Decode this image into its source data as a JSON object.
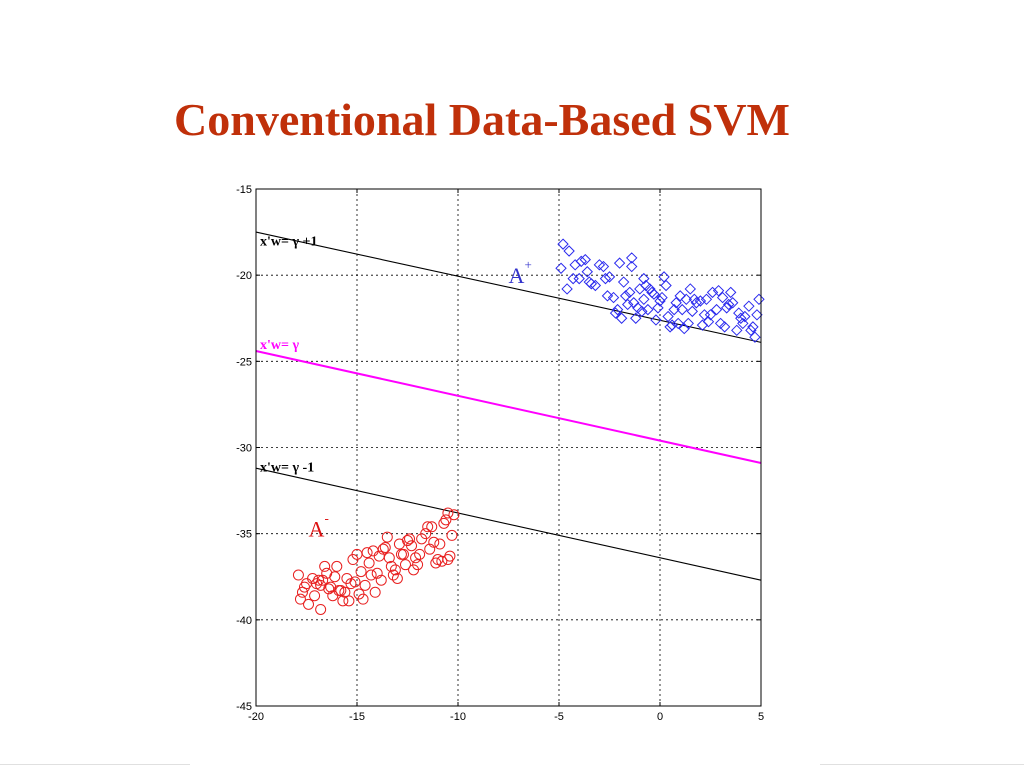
{
  "slide": {
    "title": "Conventional Data-Based SVM"
  },
  "chart_data": {
    "type": "scatter",
    "title": "",
    "xlabel": "",
    "ylabel": "",
    "xlim": [
      -20,
      5
    ],
    "ylim": [
      -45,
      -15
    ],
    "xticks": [
      -20,
      -15,
      -10,
      -5,
      0,
      5
    ],
    "yticks": [
      -45,
      -40,
      -35,
      -30,
      -25,
      -20,
      -15
    ],
    "xtick_labels": [
      "-20",
      "-15",
      "-10",
      "-5",
      "0",
      "5"
    ],
    "ytick_labels": [
      "-45",
      "-40",
      "-35",
      "-30",
      "-25",
      "-20",
      "-15"
    ],
    "grid": "dotted",
    "lines": [
      {
        "label": "x'w= γ +1",
        "color": "#000000",
        "x": [
          -20,
          5
        ],
        "y": [
          -17.5,
          -23.9
        ]
      },
      {
        "label": "x'w= γ",
        "color": "#ff00ff",
        "x": [
          -20,
          5
        ],
        "y": [
          -24.4,
          -30.9
        ]
      },
      {
        "label": "x'w= γ -1",
        "color": "#000000",
        "x": [
          -20,
          5
        ],
        "y": [
          -31.2,
          -37.7
        ]
      }
    ],
    "line_labels": [
      {
        "text": "x'w= γ +1",
        "color": "#000000",
        "at": [
          -19.9,
          -18.0
        ]
      },
      {
        "text": "x'w= γ",
        "color": "#ff00ff",
        "at": [
          -19.9,
          -24.0
        ]
      },
      {
        "text": "x'w= γ -1",
        "color": "#000000",
        "at": [
          -19.9,
          -31.1
        ]
      }
    ],
    "class_labels": [
      {
        "base": "A",
        "sup": "+",
        "color": "#3333cc",
        "at": [
          -7.5,
          -20.0
        ]
      },
      {
        "base": "A",
        "sup": "-",
        "color": "#dd1111",
        "at": [
          -17.4,
          -34.7
        ]
      }
    ],
    "series": [
      {
        "name": "A+",
        "marker": "diamond",
        "color": "#2a2aee",
        "x": [
          -4.8,
          -4.5,
          -4.2,
          -4.9,
          -4.0,
          -3.6,
          -3.2,
          -4.6,
          -3.9,
          -2.8,
          -2.5,
          -3.4,
          -2.0,
          -1.8,
          -1.4,
          -1.0,
          -2.3,
          -1.6,
          -0.8,
          -0.4,
          -1.2,
          0.0,
          0.3,
          0.7,
          -0.2,
          1.0,
          1.4,
          0.5,
          1.8,
          2.2,
          2.6,
          3.0,
          3.4,
          3.8,
          4.2,
          4.6,
          4.9,
          -2.1,
          -1.7,
          -1.3,
          -0.9,
          -0.5,
          -0.1,
          0.4,
          0.8,
          1.2,
          1.6,
          2.0,
          2.4,
          2.8,
          3.2,
          3.6,
          4.0,
          4.4,
          -2.7,
          -3.0,
          -1.5,
          -0.7,
          0.1,
          0.9,
          1.7,
          2.5,
          3.3,
          4.1,
          -3.5,
          -2.6,
          -1.9,
          -1.1,
          -0.3,
          0.6,
          1.5,
          2.3,
          3.1,
          3.9,
          4.7,
          -4.3,
          -3.7,
          -0.6,
          1.1,
          2.1,
          -1.4,
          0.2,
          2.9,
          4.5,
          -2.2,
          -0.8,
          1.3,
          3.5,
          4.8
        ],
        "y": [
          -18.2,
          -18.6,
          -19.4,
          -19.6,
          -20.2,
          -19.8,
          -20.6,
          -20.8,
          -19.2,
          -19.5,
          -20.1,
          -20.5,
          -19.3,
          -20.4,
          -19.5,
          -20.8,
          -21.3,
          -21.7,
          -20.2,
          -21.0,
          -22.5,
          -21.5,
          -20.6,
          -22.0,
          -22.6,
          -21.2,
          -22.8,
          -23.0,
          -21.6,
          -22.3,
          -21.0,
          -22.8,
          -21.7,
          -23.2,
          -22.4,
          -23.0,
          -21.4,
          -22.0,
          -21.2,
          -21.6,
          -22.1,
          -20.8,
          -21.9,
          -22.4,
          -21.6,
          -23.1,
          -22.1,
          -21.5,
          -22.7,
          -22.0,
          -23.0,
          -21.6,
          -22.5,
          -21.8,
          -20.2,
          -19.4,
          -21.0,
          -20.6,
          -21.3,
          -22.8,
          -21.4,
          -22.3,
          -21.9,
          -22.8,
          -20.4,
          -21.2,
          -22.5,
          -21.9,
          -21.1,
          -22.9,
          -20.8,
          -21.4,
          -21.3,
          -22.2,
          -23.6,
          -20.2,
          -19.1,
          -22.0,
          -22.0,
          -22.9,
          -19.0,
          -20.1,
          -20.9,
          -23.2,
          -22.2,
          -21.4,
          -21.4,
          -21.0,
          -22.3
        ]
      },
      {
        "name": "A-",
        "marker": "circle",
        "color": "#e82020",
        "x": [
          -17.9,
          -17.6,
          -17.2,
          -17.8,
          -17.4,
          -16.8,
          -16.5,
          -16.2,
          -17.0,
          -16.6,
          -15.9,
          -15.5,
          -15.2,
          -14.8,
          -15.7,
          -16.1,
          -15.0,
          -14.6,
          -14.3,
          -13.9,
          -13.6,
          -14.1,
          -13.3,
          -12.9,
          -12.6,
          -13.0,
          -12.3,
          -11.9,
          -11.6,
          -12.2,
          -11.3,
          -10.9,
          -10.6,
          -10.3,
          -11.0,
          -10.5,
          -10.2,
          -13.5,
          -14.5,
          -15.3,
          -16.4,
          -17.5,
          -12.7,
          -11.4,
          -10.8,
          -14.9,
          -13.8,
          -12.4,
          -16.0,
          -15.6,
          -14.2,
          -13.1,
          -11.8,
          -10.4,
          -17.1,
          -16.7,
          -15.8,
          -14.7,
          -13.4,
          -12.1,
          -11.2,
          -10.7,
          -14.4,
          -13.2,
          -12.0,
          -16.3,
          -15.1,
          -17.7,
          -16.9,
          -10.5,
          -12.8,
          -11.5,
          -13.7,
          -14.0,
          -15.4,
          -12.5,
          -11.1,
          -16.8
        ],
        "y": [
          -37.4,
          -38.1,
          -37.6,
          -38.8,
          -39.1,
          -38.0,
          -37.3,
          -38.6,
          -37.9,
          -36.9,
          -38.3,
          -37.6,
          -36.5,
          -37.2,
          -38.9,
          -37.5,
          -36.2,
          -38.0,
          -37.4,
          -36.3,
          -35.8,
          -38.4,
          -36.9,
          -35.6,
          -36.8,
          -37.6,
          -35.7,
          -36.2,
          -35.0,
          -37.1,
          -34.6,
          -35.6,
          -34.2,
          -35.1,
          -36.5,
          -36.5,
          -33.9,
          -35.2,
          -36.1,
          -37.9,
          -38.2,
          -37.9,
          -36.2,
          -35.9,
          -36.6,
          -38.5,
          -37.7,
          -35.3,
          -36.9,
          -38.4,
          -36.0,
          -37.1,
          -35.3,
          -36.3,
          -38.6,
          -37.7,
          -38.3,
          -38.8,
          -36.4,
          -36.4,
          -35.5,
          -34.4,
          -36.7,
          -37.4,
          -36.8,
          -38.1,
          -37.8,
          -38.4,
          -37.7,
          -33.8,
          -36.2,
          -34.6,
          -35.9,
          -37.3,
          -38.9,
          -35.4,
          -36.7,
          -39.4
        ]
      }
    ]
  }
}
